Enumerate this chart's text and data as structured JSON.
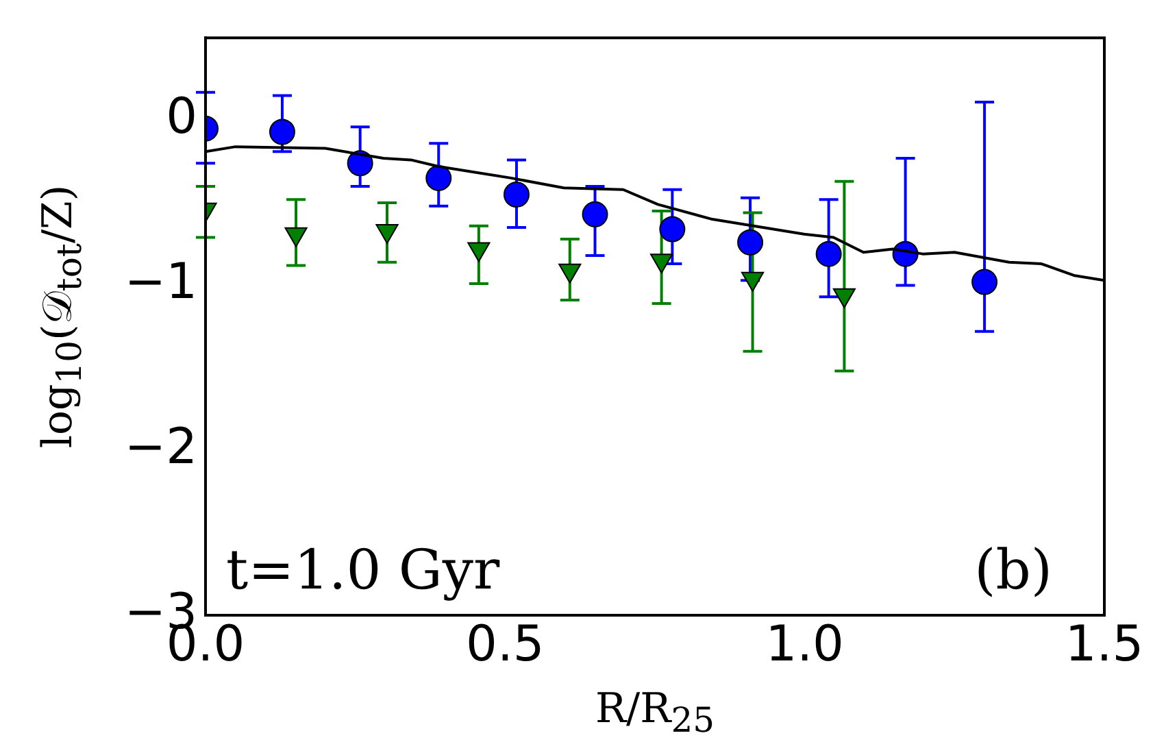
{
  "chart_data": {
    "type": "scatter",
    "xlabel": "R/R$_{25}$",
    "ylabel": "log$_{10}$(𝒟$_{tot}$/Z)",
    "annotations": [
      "t=1.0 Gyr",
      "(b)"
    ],
    "xlim": [
      0,
      1.5
    ],
    "xticks": [
      {
        "value": 0,
        "label": "0.0"
      },
      {
        "value": 0.5,
        "label": "0.5"
      },
      {
        "value": 1,
        "label": "1.0"
      },
      {
        "value": 1.5,
        "label": "1.5"
      }
    ],
    "ylim": [
      -3,
      0.5
    ],
    "yticks": [
      {
        "value": -3,
        "label": "−3"
      },
      {
        "value": -2,
        "label": "−2"
      },
      {
        "value": -1,
        "label": "−1"
      },
      {
        "value": 0,
        "label": "0"
      }
    ],
    "grid": false,
    "series": [
      {
        "type": "line",
        "color": "#000000",
        "marker": "none",
        "x": [
          0,
          0.05,
          0.2,
          0.297,
          0.343,
          0.389,
          0.51,
          0.598,
          0.697,
          0.755,
          0.846,
          0.999,
          1.048,
          1.098,
          1.147,
          1.197,
          1.25,
          1.341,
          1.395,
          1.449,
          1.5
        ],
        "values": [
          -0.19,
          -0.16,
          -0.17,
          -0.23,
          -0.24,
          -0.28,
          -0.35,
          -0.41,
          -0.42,
          -0.51,
          -0.6,
          -0.69,
          -0.71,
          -0.8,
          -0.78,
          -0.81,
          -0.8,
          -0.86,
          -0.87,
          -0.94,
          -0.97
        ]
      },
      {
        "color": "#0000ff",
        "marker": "circle",
        "x": [
          0,
          0.128,
          0.258,
          0.389,
          0.519,
          0.65,
          0.779,
          0.909,
          1.04,
          1.168,
          1.3
        ],
        "values": [
          -0.05,
          -0.07,
          -0.26,
          -0.35,
          -0.45,
          -0.57,
          -0.66,
          -0.74,
          -0.81,
          -0.81,
          -0.98
        ],
        "errors": [
          [
            -0.26,
            0.17
          ],
          [
            -0.19,
            0.15
          ],
          [
            -0.4,
            -0.04
          ],
          [
            -0.52,
            -0.14
          ],
          [
            -0.65,
            -0.24
          ],
          [
            -0.82,
            -0.4
          ],
          [
            -0.87,
            -0.42
          ],
          [
            -0.97,
            -0.47
          ],
          [
            -1.07,
            -0.48
          ],
          [
            -1.0,
            -0.23
          ],
          [
            -1.28,
            0.11
          ]
        ]
      },
      {
        "color": "#007f00",
        "marker": "triangle",
        "x": [
          0,
          0.151,
          0.303,
          0.456,
          0.608,
          0.761,
          0.913,
          1.066
        ],
        "values": [
          -0.54,
          -0.69,
          -0.67,
          -0.78,
          -0.91,
          -0.85,
          -0.96,
          -1.06
        ],
        "errors": [
          [
            -0.71,
            -0.4
          ],
          [
            -0.88,
            -0.48
          ],
          [
            -0.86,
            -0.5
          ],
          [
            -0.99,
            -0.64
          ],
          [
            -1.09,
            -0.72
          ],
          [
            -1.11,
            -0.55
          ],
          [
            -1.4,
            -0.56
          ],
          [
            -1.52,
            -0.37
          ]
        ]
      }
    ]
  }
}
